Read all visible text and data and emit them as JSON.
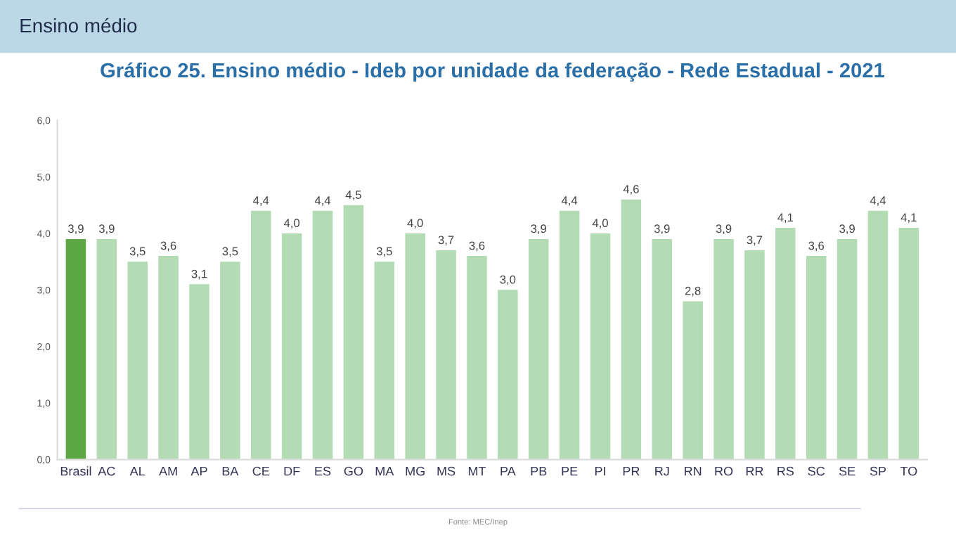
{
  "chart_data": {
    "type": "bar",
    "title": "Gráfico 25. Ensino médio - Ideb por unidade da federação - Rede Estadual - 2021",
    "categories": [
      "Brasil",
      "AC",
      "AL",
      "AM",
      "AP",
      "BA",
      "CE",
      "DF",
      "ES",
      "GO",
      "MA",
      "MG",
      "MS",
      "MT",
      "PA",
      "PB",
      "PE",
      "PI",
      "PR",
      "RJ",
      "RN",
      "RO",
      "RR",
      "RS",
      "SC",
      "SE",
      "SP",
      "TO"
    ],
    "values": [
      3.9,
      3.9,
      3.5,
      3.6,
      3.1,
      3.5,
      4.4,
      4.0,
      4.4,
      4.5,
      3.5,
      4.0,
      3.7,
      3.6,
      3.0,
      3.9,
      4.4,
      4.0,
      4.6,
      3.9,
      2.8,
      3.9,
      3.7,
      4.1,
      3.6,
      3.9,
      4.4,
      4.1
    ],
    "value_labels": [
      "3,9",
      "3,9",
      "3,5",
      "3,6",
      "3,1",
      "3,5",
      "4,4",
      "4,0",
      "4,4",
      "4,5",
      "3,5",
      "4,0",
      "3,7",
      "3,6",
      "3,0",
      "3,9",
      "4,4",
      "4,0",
      "4,6",
      "3,9",
      "2,8",
      "3,9",
      "3,7",
      "4,1",
      "3,6",
      "3,9",
      "4,4",
      "4,1"
    ],
    "colors": [
      "#5da646",
      "#b3dbb4",
      "#b3dbb4",
      "#b3dbb4",
      "#b3dbb4",
      "#b3dbb4",
      "#b3dbb4",
      "#b3dbb4",
      "#b3dbb4",
      "#b3dbb4",
      "#b3dbb4",
      "#b3dbb4",
      "#b3dbb4",
      "#b3dbb4",
      "#b3dbb4",
      "#b3dbb4",
      "#b3dbb4",
      "#b3dbb4",
      "#b3dbb4",
      "#b3dbb4",
      "#b3dbb4",
      "#b3dbb4",
      "#b3dbb4",
      "#b3dbb4",
      "#b3dbb4",
      "#b3dbb4",
      "#b3dbb4",
      "#b3dbb4"
    ],
    "ylim": [
      0,
      6
    ],
    "yticks": [
      {
        "value": 0,
        "label": "0,0"
      },
      {
        "value": 1,
        "label": "1,0"
      },
      {
        "value": 2,
        "label": "2,0"
      },
      {
        "value": 3,
        "label": "3,0"
      },
      {
        "value": 4,
        "label": "4,0"
      },
      {
        "value": 5,
        "label": "5,0"
      },
      {
        "value": 6,
        "label": "6,0"
      }
    ],
    "grid": false,
    "legend": false,
    "annotations": [
      "Ensino médio",
      "Fonte: MEC/Inep"
    ]
  }
}
